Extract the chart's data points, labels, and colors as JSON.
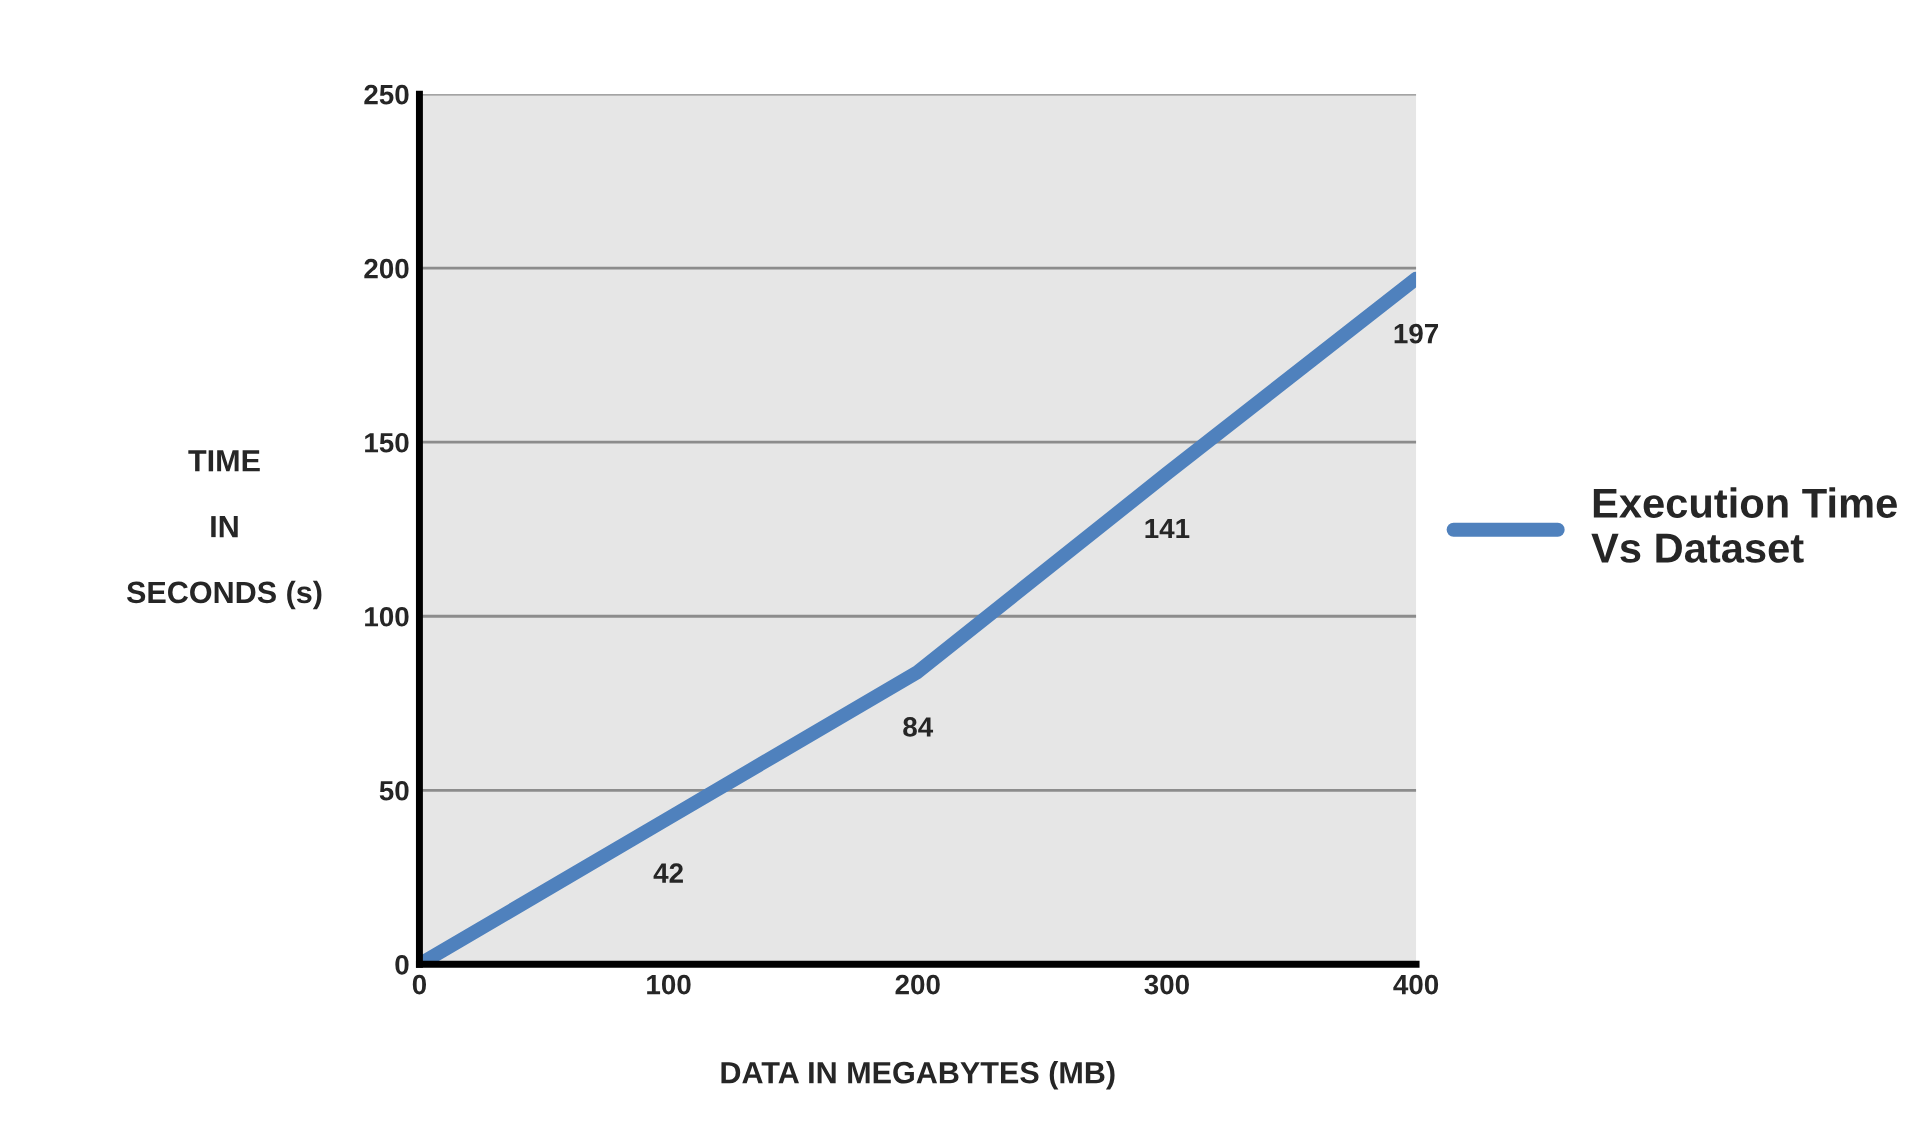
{
  "chart_data": {
    "type": "line",
    "xlabel": "DATA IN MEGABYTES (MB)",
    "ylabel": "TIME\n\nIN\n\nSECONDS (s)",
    "x": [
      0,
      100,
      200,
      300,
      400
    ],
    "series": [
      {
        "name": "Execution Time\nVs Dataset",
        "color": "#4f81bd",
        "values": [
          0,
          42,
          84,
          141,
          197
        ],
        "value_labels": [
          null,
          "42",
          "84",
          "141",
          "197"
        ]
      }
    ],
    "xlim": [
      0,
      400
    ],
    "xticks": [
      0,
      100,
      200,
      300,
      400
    ],
    "ylim": [
      0,
      250
    ],
    "yticks": [
      0,
      50,
      100,
      150,
      200,
      250
    ],
    "grid": "y",
    "legend": "right",
    "marker": "none",
    "line_style": "solid"
  }
}
